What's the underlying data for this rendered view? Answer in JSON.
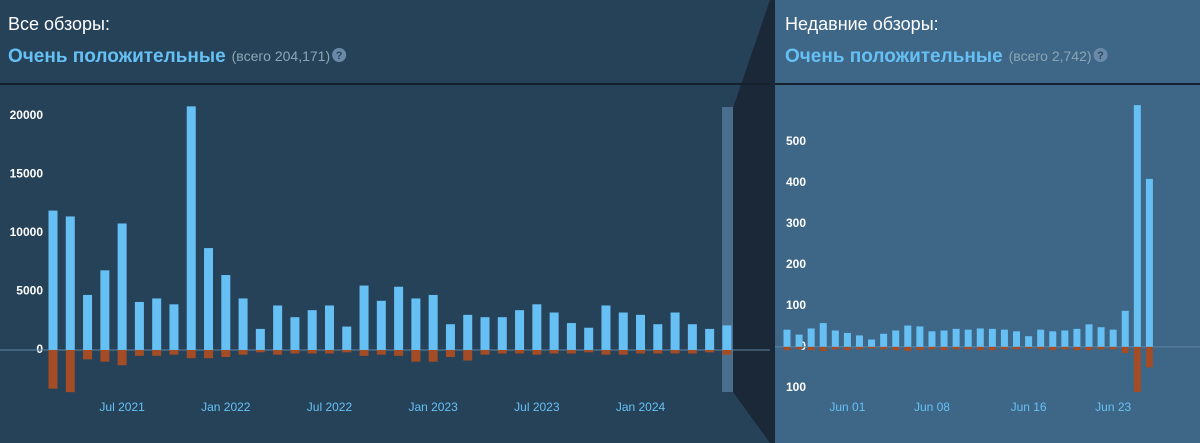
{
  "chart_data": [
    {
      "type": "bar",
      "title": "Все обзоры:",
      "rating": "Очень положительные",
      "total": "(всего 204,171)",
      "help_icon": "?",
      "categories": [
        null,
        null,
        null,
        null,
        "Jul 2021",
        null,
        null,
        null,
        null,
        null,
        "Jan 2022",
        null,
        null,
        null,
        null,
        null,
        "Jul 2022",
        null,
        null,
        null,
        null,
        null,
        "Jan 2023",
        null,
        null,
        null,
        null,
        null,
        "Jul 2023",
        null,
        null,
        null,
        null,
        null,
        "Jan 2024",
        null,
        null,
        null,
        null,
        null
      ],
      "series": [
        {
          "color": "#66c0f4",
          "values": [
            11900,
            11400,
            4700,
            6800,
            10800,
            4100,
            4400,
            3900,
            20800,
            8700,
            6400,
            4400,
            1800,
            3800,
            2800,
            3400,
            3800,
            2000,
            5500,
            4200,
            5400,
            4400,
            4700,
            2200,
            3000,
            2800,
            2800,
            3400,
            3900,
            3200,
            2300,
            1900,
            3800,
            3200,
            3000,
            2200,
            3200,
            2200,
            1800,
            2100
          ]
        },
        {
          "color": "#a34c25",
          "values": [
            -3300,
            -3600,
            -800,
            -1000,
            -1300,
            -500,
            -500,
            -400,
            -700,
            -700,
            -600,
            -400,
            -200,
            -400,
            -300,
            -300,
            -300,
            -200,
            -500,
            -400,
            -500,
            -1000,
            -1000,
            -600,
            -900,
            -400,
            -300,
            -300,
            -400,
            -300,
            -300,
            -200,
            -400,
            -400,
            -300,
            -300,
            -300,
            -300,
            -200,
            -400
          ]
        }
      ],
      "ylim": [
        -3800,
        21000
      ],
      "yticks": [
        0,
        5000,
        10000,
        15000,
        20000
      ],
      "grid": false
    },
    {
      "type": "bar",
      "title": "Недавние обзоры:",
      "rating": "Очень положительные",
      "total": "(всего 2,742)",
      "help_icon": "?",
      "categories": [
        null,
        null,
        null,
        null,
        null,
        "Jun 01",
        null,
        null,
        null,
        null,
        null,
        null,
        "Jun 08",
        null,
        null,
        null,
        null,
        null,
        null,
        null,
        "Jun 16",
        null,
        null,
        null,
        null,
        null,
        null,
        "Jun 23",
        null,
        null,
        null,
        null
      ],
      "series": [
        {
          "color": "#66c0f4",
          "values": [
            42,
            30,
            45,
            58,
            40,
            34,
            28,
            18,
            32,
            40,
            52,
            50,
            38,
            40,
            44,
            42,
            45,
            44,
            42,
            38,
            26,
            42,
            38,
            40,
            44,
            55,
            48,
            42,
            88,
            590,
            410,
            0
          ]
        },
        {
          "color": "#a34c25",
          "values": [
            -8,
            -6,
            -8,
            -10,
            -6,
            -8,
            -6,
            -4,
            -6,
            -8,
            -10,
            -8,
            -6,
            -8,
            -6,
            -6,
            -8,
            -8,
            -6,
            -6,
            -4,
            -6,
            -8,
            -6,
            -8,
            -8,
            -6,
            -6,
            -15,
            -110,
            -50,
            0
          ]
        }
      ],
      "ylim": [
        -115,
        600
      ],
      "yticks": [
        {
          "value": -100,
          "label": "100"
        },
        0,
        100,
        200,
        300,
        400,
        500
      ],
      "grid": false
    }
  ]
}
